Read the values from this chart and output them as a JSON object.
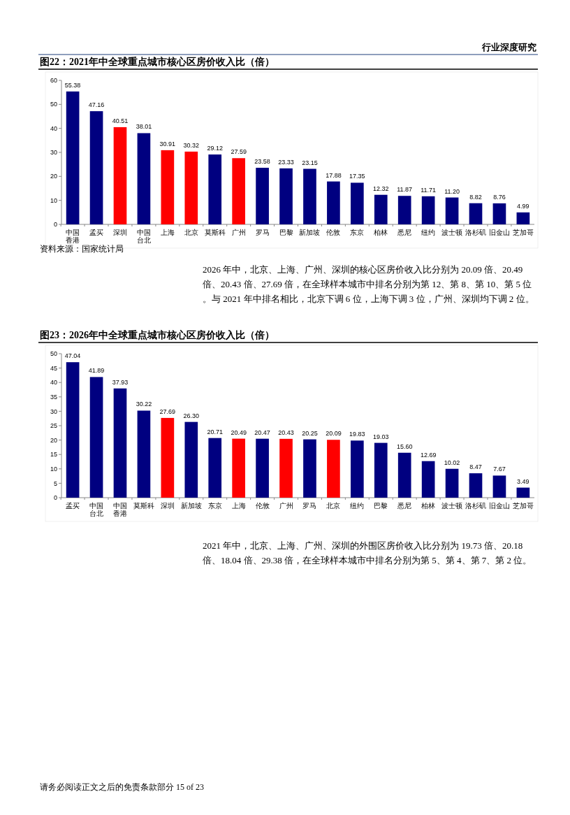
{
  "chart_data": [
    {
      "type": "bar",
      "title": "图22：2021年中全球重点城市核心区房价收入比（倍）",
      "categories": [
        "中国香港",
        "孟买",
        "深圳",
        "中国台北",
        "上海",
        "北京",
        "莫斯科",
        "广州",
        "罗马",
        "巴黎",
        "新加坡",
        "伦敦",
        "东京",
        "柏林",
        "悉尼",
        "纽约",
        "波士顿",
        "洛杉矶",
        "旧金山",
        "芝加哥"
      ],
      "values": [
        55.38,
        47.16,
        40.51,
        38.01,
        30.91,
        30.32,
        29.12,
        27.59,
        23.58,
        23.33,
        23.15,
        17.88,
        17.35,
        12.32,
        11.87,
        11.71,
        11.2,
        8.82,
        8.76,
        4.99
      ],
      "colors": [
        "#000080",
        "#000080",
        "#ff0000",
        "#000080",
        "#ff0000",
        "#ff0000",
        "#000080",
        "#ff0000",
        "#000080",
        "#000080",
        "#000080",
        "#000080",
        "#000080",
        "#000080",
        "#000080",
        "#000080",
        "#000080",
        "#000080",
        "#000080",
        "#000080"
      ],
      "ylim": [
        0,
        60
      ],
      "yticks": [
        0,
        10,
        20,
        30,
        40,
        50,
        60
      ],
      "value_labels": [
        "55.38",
        "47.16",
        "40.51",
        "38.01",
        "30.91",
        "30.32",
        "29.12",
        "27.59",
        "23.58",
        "23.33",
        "23.15",
        "17.88",
        "17.35",
        "12.32",
        "11.87",
        "11.71",
        "11.20",
        "8.82",
        "8.76",
        "4.99"
      ],
      "annotations": [
        "行业深度研究",
        "资料来源：国家统计局",
        "2026 年中，北京、上海、广州、深圳的核心区房价收入比分别为 20.09 倍、20.49 倍、20.43 倍、27.69 倍，在全球样本城市中排名分别为第 12、第 8、第 10、第 5 位。与 2021 年中排名相比，北京下调 6 位，上海下调 3 位，广州、深圳均下调 2 位。"
      ]
    },
    {
      "type": "bar",
      "title": "图23：2026年中全球重点城市核心区房价收入比（倍）",
      "categories": [
        "孟买",
        "中国台北",
        "中国香港",
        "莫斯科",
        "深圳",
        "新加坡",
        "东京",
        "上海",
        "伦敦",
        "广州",
        "罗马",
        "北京",
        "纽约",
        "巴黎",
        "悉尼",
        "柏林",
        "波士顿",
        "洛杉矶",
        "旧金山",
        "芝加哥"
      ],
      "values": [
        47.04,
        41.89,
        37.93,
        30.22,
        27.69,
        26.3,
        20.71,
        20.49,
        20.47,
        20.43,
        20.25,
        20.09,
        19.83,
        19.03,
        15.6,
        12.69,
        10.02,
        8.47,
        7.67,
        3.49
      ],
      "colors": [
        "#000080",
        "#000080",
        "#000080",
        "#000080",
        "#ff0000",
        "#000080",
        "#000080",
        "#ff0000",
        "#000080",
        "#ff0000",
        "#000080",
        "#ff0000",
        "#000080",
        "#000080",
        "#000080",
        "#000080",
        "#000080",
        "#000080",
        "#000080",
        "#000080"
      ],
      "ylim": [
        0,
        50
      ],
      "yticks": [
        0,
        5,
        10,
        15,
        20,
        25,
        30,
        35,
        40,
        45,
        50
      ],
      "value_labels": [
        "47.04",
        "41.89",
        "37.93",
        "30.22",
        "27.69",
        "26.30",
        "20.71",
        "20.49",
        "20.47",
        "20.43",
        "20.25",
        "20.09",
        "19.83",
        "19.03",
        "15.60",
        "12.69",
        "10.02",
        "8.47",
        "7.67",
        "3.49"
      ],
      "annotations": [
        "2021 年中，北京、上海、广州、深圳的外围区房价收入比分别为 19.73 倍、20.18 倍、18.04 倍、29.38 倍，在全球样本城市中排名分别为第 5、第 4、第 7、第 2 位。",
        "请务必阅读正文之后的免责条款部分 15 of 23"
      ]
    }
  ]
}
